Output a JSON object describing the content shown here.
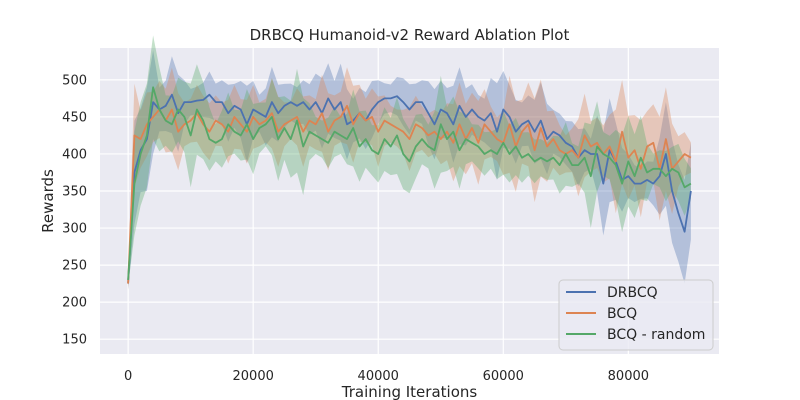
{
  "chart_data": {
    "type": "line",
    "title": "DRBCQ Humanoid-v2 Reward Ablation Plot",
    "xlabel": "Training Iterations",
    "ylabel": "Rewards",
    "xlim": [
      -4500,
      94500
    ],
    "ylim": [
      130,
      543
    ],
    "xticks": [
      0,
      20000,
      40000,
      60000,
      80000
    ],
    "xtick_labels": [
      "0",
      "20000",
      "40000",
      "60000",
      "80000"
    ],
    "yticks": [
      150,
      200,
      250,
      300,
      350,
      400,
      450,
      500
    ],
    "ytick_labels": [
      "150",
      "200",
      "250",
      "300",
      "350",
      "400",
      "450",
      "500"
    ],
    "grid": true,
    "legend_position": "lower-right",
    "x": [
      0,
      1000,
      2000,
      3000,
      4000,
      5000,
      6000,
      7000,
      8000,
      9000,
      10000,
      11000,
      12000,
      13000,
      14000,
      15000,
      16000,
      17000,
      18000,
      19000,
      20000,
      21000,
      22000,
      23000,
      24000,
      25000,
      26000,
      27000,
      28000,
      29000,
      30000,
      31000,
      32000,
      33000,
      34000,
      35000,
      36000,
      37000,
      38000,
      39000,
      40000,
      41000,
      42000,
      43000,
      44000,
      45000,
      46000,
      47000,
      48000,
      49000,
      50000,
      51000,
      52000,
      53000,
      54000,
      55000,
      56000,
      57000,
      58000,
      59000,
      60000,
      61000,
      62000,
      63000,
      64000,
      65000,
      66000,
      67000,
      68000,
      69000,
      70000,
      71000,
      72000,
      73000,
      74000,
      75000,
      76000,
      77000,
      78000,
      79000,
      80000,
      81000,
      82000,
      83000,
      84000,
      85000,
      86000,
      87000,
      88000,
      89000,
      90000
    ],
    "series": [
      {
        "name": "DRBCQ",
        "color": "#4c72b0",
        "values": [
          225,
          375,
          405,
          420,
          470,
          460,
          465,
          480,
          455,
          470,
          470,
          472,
          473,
          480,
          470,
          470,
          455,
          465,
          460,
          440,
          460,
          455,
          450,
          470,
          455,
          465,
          470,
          465,
          470,
          460,
          470,
          455,
          475,
          460,
          470,
          440,
          445,
          455,
          445,
          460,
          470,
          475,
          475,
          478,
          470,
          460,
          470,
          470,
          455,
          440,
          460,
          455,
          440,
          465,
          450,
          460,
          450,
          445,
          455,
          430,
          460,
          450,
          430,
          440,
          445,
          430,
          445,
          420,
          430,
          425,
          415,
          410,
          395,
          405,
          400,
          400,
          360,
          405,
          390,
          365,
          370,
          360,
          360,
          365,
          360,
          370,
          400,
          350,
          320,
          295,
          350
        ]
      },
      {
        "name": "BCQ",
        "color": "#dd8452",
        "values": [
          225,
          425,
          420,
          440,
          450,
          460,
          445,
          460,
          430,
          440,
          445,
          455,
          440,
          430,
          445,
          440,
          430,
          450,
          440,
          430,
          450,
          440,
          445,
          455,
          430,
          440,
          445,
          450,
          430,
          445,
          440,
          455,
          430,
          445,
          450,
          465,
          440,
          455,
          445,
          450,
          430,
          445,
          440,
          435,
          430,
          420,
          440,
          435,
          425,
          430,
          420,
          430,
          415,
          440,
          420,
          435,
          415,
          440,
          430,
          420,
          415,
          440,
          410,
          430,
          440,
          405,
          435,
          410,
          420,
          405,
          400,
          405,
          395,
          425,
          410,
          415,
          400,
          410,
          390,
          430,
          395,
          405,
          380,
          410,
          415,
          380,
          420,
          380,
          390,
          400,
          395
        ]
      },
      {
        "name": "BCQ - random",
        "color": "#55a868",
        "values": [
          230,
          360,
          400,
          425,
          490,
          460,
          445,
          440,
          460,
          450,
          425,
          460,
          445,
          420,
          415,
          420,
          440,
          430,
          425,
          440,
          420,
          435,
          440,
          450,
          420,
          435,
          420,
          445,
          410,
          430,
          425,
          420,
          415,
          430,
          425,
          420,
          435,
          410,
          420,
          405,
          400,
          420,
          410,
          425,
          400,
          390,
          410,
          420,
          410,
          405,
          440,
          420,
          430,
          405,
          420,
          415,
          410,
          400,
          405,
          400,
          415,
          400,
          410,
          395,
          400,
          390,
          395,
          390,
          395,
          385,
          400,
          385,
          385,
          395,
          370,
          410,
          400,
          395,
          385,
          360,
          390,
          370,
          395,
          375,
          380,
          380,
          370,
          380,
          375,
          355,
          360
        ]
      }
    ]
  }
}
